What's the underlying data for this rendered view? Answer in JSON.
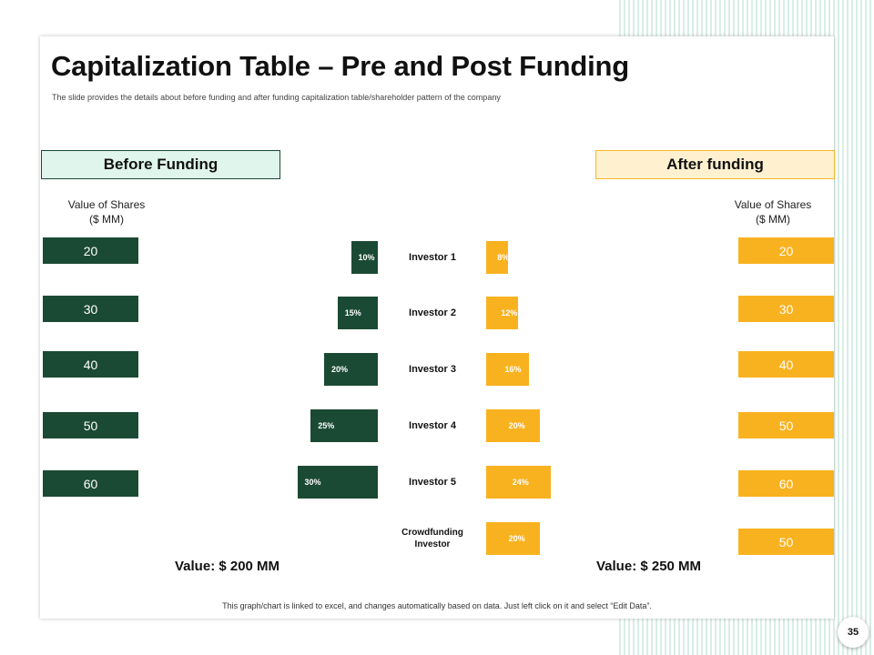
{
  "slide": {
    "title": "Capitalization Table – Pre and Post Funding",
    "subtitle": "The slide provides the details about before funding and after funding capitalization table/shareholder pattern of the company",
    "footnote": "This graph/chart is linked to excel, and changes automatically based on data. Just left click on it and select “Edit Data”.",
    "page_number": "35"
  },
  "before": {
    "header": "Before Funding",
    "value_label": "Value of Shares\n($ MM)",
    "total": "Value: $ 200 MM",
    "color": "#1b4a34"
  },
  "after": {
    "header": "After funding",
    "value_label": "Value of Shares\n($ MM)",
    "total": "Value: $ 250 MM",
    "color": "#f9b21f"
  },
  "chart_data": {
    "type": "bar",
    "categories": [
      "Investor 1",
      "Investor 2",
      "Investor 3",
      "Investor 4",
      "Investor 5",
      "Crowdfunding Investor"
    ],
    "series": [
      {
        "name": "Before Funding",
        "values": [
          10,
          15,
          20,
          25,
          30,
          null
        ],
        "labels": [
          "10%",
          "15%",
          "20%",
          "25%",
          "30%",
          null
        ],
        "share_values": [
          "20",
          "30",
          "40",
          "50",
          "60",
          null
        ]
      },
      {
        "name": "After funding",
        "values": [
          8,
          12,
          16,
          20,
          24,
          20
        ],
        "labels": [
          "8%",
          "12%",
          "16%",
          "20%",
          "24%",
          "20%"
        ],
        "share_values": [
          "20",
          "30",
          "40",
          "50",
          "60",
          "50"
        ]
      }
    ],
    "unit": "%"
  }
}
